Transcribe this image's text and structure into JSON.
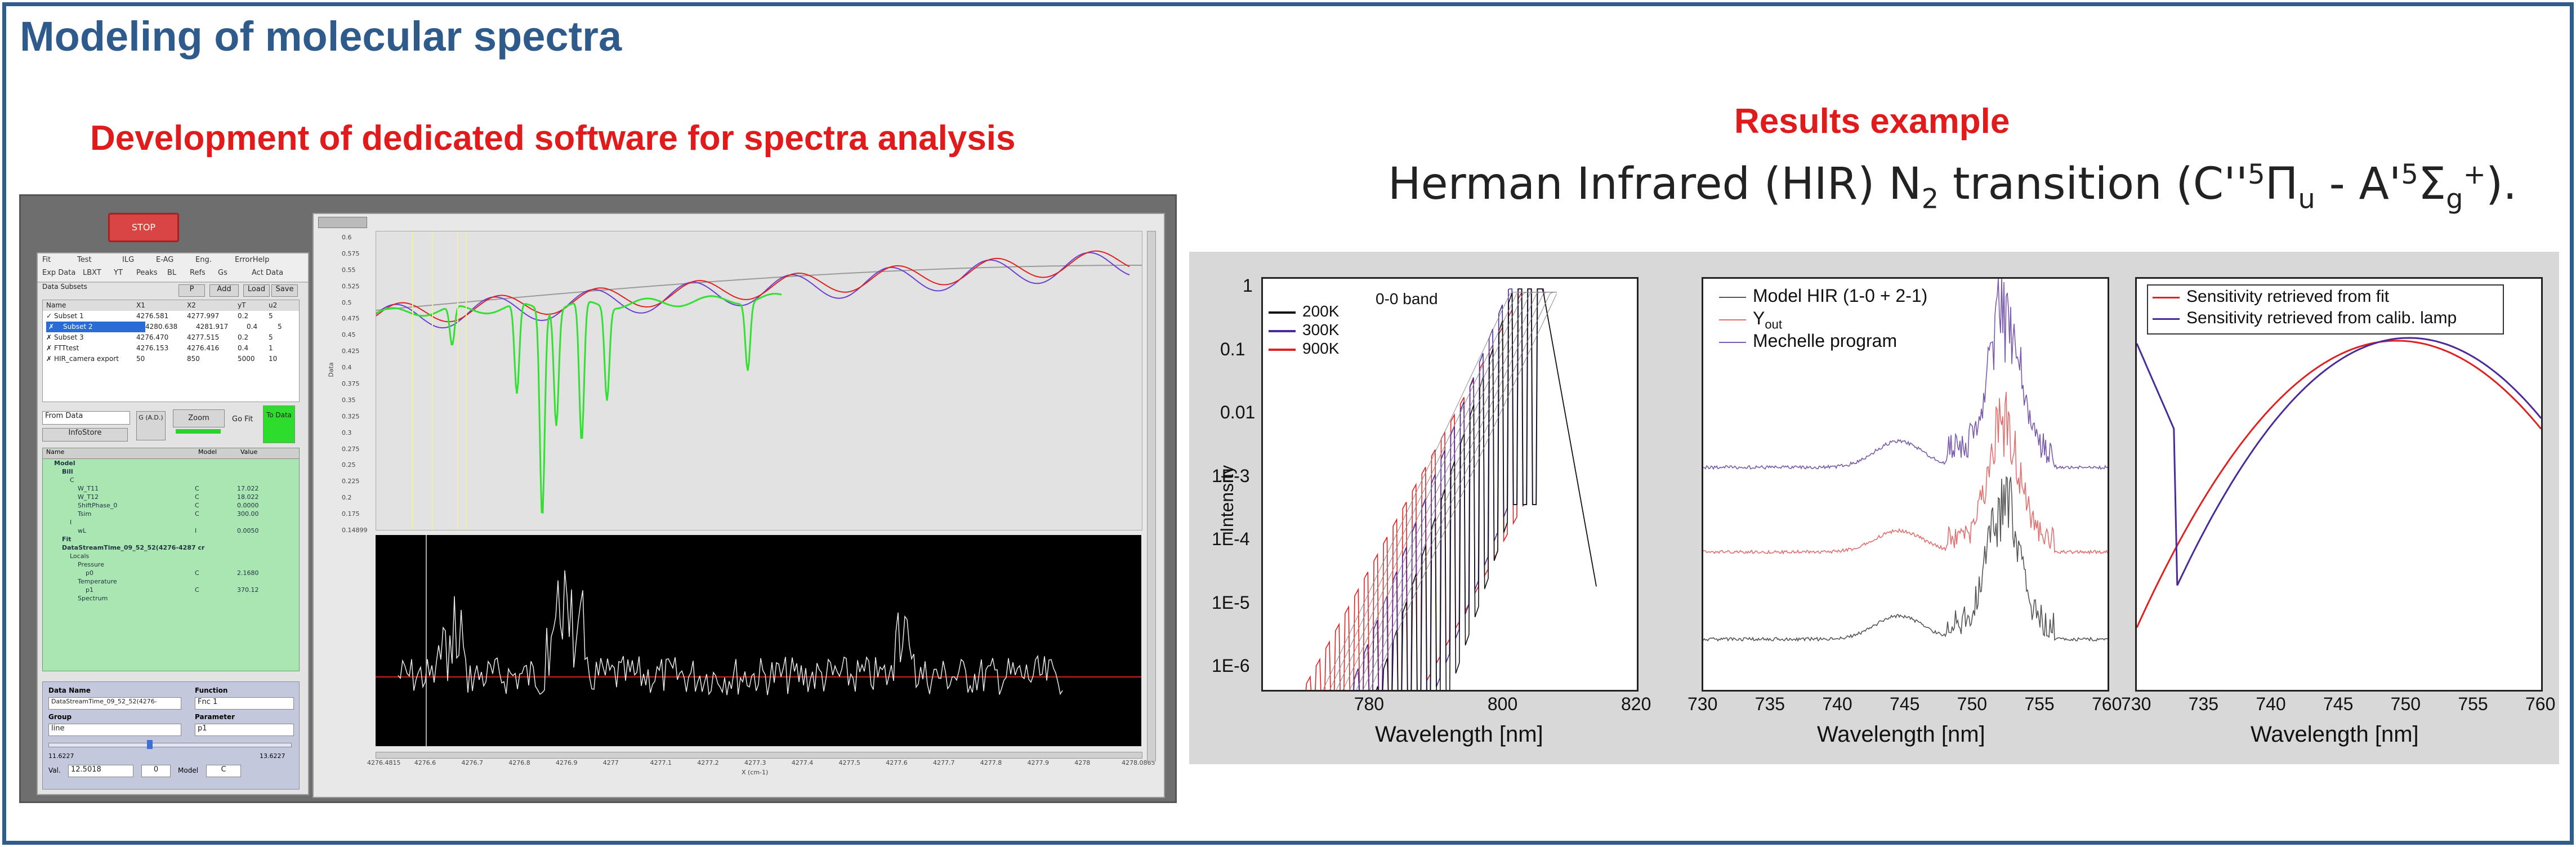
{
  "header": {
    "title": "Modeling of molecular spectra",
    "left_subtitle": "Development of dedicated software for spectra  analysis",
    "right_subtitle": "Results example",
    "transition": {
      "prefix": "Herman Infrared (HIR) N",
      "n_sub": "2",
      "mid": " transition (C''",
      "c_sup": "5",
      "pi": "Π",
      "pi_sub": "u",
      "dash": " - A'",
      "a_sup": "5",
      "sigma": "Σ",
      "sigma_sub": "g",
      "sigma_sup": "+",
      "suffix": ")."
    }
  },
  "software": {
    "stop_label": "STOP",
    "menu_row1": [
      "Fit",
      "Test",
      "ILG",
      "E-AG",
      "Eng.",
      "ErrorHelp"
    ],
    "menu_row2": [
      "Exp Data",
      "LBXT",
      "YT",
      "Peaks",
      "BL",
      "Refs",
      "Gs",
      "Act Data"
    ],
    "subset_buttons": [
      "P",
      "Add",
      "Load",
      "Save"
    ],
    "subsets_title": "Data Subsets",
    "subsets_header": [
      "Name",
      "X1",
      "X2",
      "yT",
      "u2"
    ],
    "subsets": [
      {
        "mark": "✓",
        "name": "Subset 1",
        "x1": "4276.581",
        "x2": "4277.997",
        "yt": "0.2",
        "u": "5"
      },
      {
        "mark": "✗",
        "name": "Subset 2",
        "x1": "4280.638",
        "x2": "4281.917",
        "yt": "0.4",
        "u": "5"
      },
      {
        "mark": "✗",
        "name": "Subset 3",
        "x1": "4276.470",
        "x2": "4277.515",
        "yt": "0.2",
        "u": "5"
      },
      {
        "mark": "✗",
        "name": "FTTtest",
        "x1": "4276.153",
        "x2": "4276.416",
        "yt": "0.4",
        "u": "1"
      },
      {
        "mark": "✗",
        "name": "HIR_camera export",
        "x1": "50",
        "x2": "850",
        "yt": "5000",
        "u": "10"
      }
    ],
    "from_data": "From Data",
    "info_store": "InfoStore",
    "g_ad": "G (A.D.)",
    "zoom": "Zoom",
    "go_fit": "Go Fit",
    "to_data": "To Data",
    "tree_header": [
      "Name",
      "Model",
      "Value"
    ],
    "tree_lines": [
      {
        "indent": 1,
        "name": "Model",
        "model": "",
        "value": ""
      },
      {
        "indent": 2,
        "name": "Bill",
        "model": "",
        "value": ""
      },
      {
        "indent": 3,
        "name": "C",
        "model": "",
        "value": ""
      },
      {
        "indent": 4,
        "name": "W_T11",
        "model": "C",
        "value": "17.022"
      },
      {
        "indent": 4,
        "name": "W_T12",
        "model": "C",
        "value": "18.022"
      },
      {
        "indent": 4,
        "name": "ShiftPhase_0",
        "model": "C",
        "value": "0.0000"
      },
      {
        "indent": 4,
        "name": "Tsim",
        "model": "C",
        "value": "300.00"
      },
      {
        "indent": 3,
        "name": "I",
        "model": "",
        "value": ""
      },
      {
        "indent": 4,
        "name": "wL",
        "model": "I",
        "value": "0.0050"
      },
      {
        "indent": 2,
        "name": "Fit",
        "model": "",
        "value": ""
      },
      {
        "indent": 2,
        "name": "DataStreamTime_09_52_52(4276-4287 cr",
        "model": "",
        "value": ""
      },
      {
        "indent": 3,
        "name": "Locals",
        "model": "",
        "value": ""
      },
      {
        "indent": 4,
        "name": "Pressure",
        "model": "",
        "value": ""
      },
      {
        "indent": 5,
        "name": "p0",
        "model": "C",
        "value": "2.1680"
      },
      {
        "indent": 4,
        "name": "Temperature",
        "model": "",
        "value": ""
      },
      {
        "indent": 5,
        "name": "p1",
        "model": "C",
        "value": "370.12"
      },
      {
        "indent": 4,
        "name": "Spectrum",
        "model": "",
        "value": ""
      }
    ],
    "data_name_label": "Data Name",
    "data_name_value": "DataStreamTime_09_52_52(4276-",
    "function_label": "Function",
    "function_value": "Fnc 1",
    "group_label": "Group",
    "group_value": "line",
    "parameter_label": "Parameter",
    "parameter_value": "p1",
    "range_min": "11.6227",
    "range_max": "13.6227",
    "val_label": "Val.",
    "val_value": "12.5018",
    "val_index": "0",
    "model_label": "Model",
    "model_value": "C",
    "upper_y_ticks": [
      "0.6",
      "0.575",
      "0.55",
      "0.525",
      "0.5",
      "0.475",
      "0.45",
      "0.425",
      "0.4",
      "0.375",
      "0.35",
      "0.325",
      "0.3",
      "0.275",
      "0.25",
      "0.225",
      "0.2",
      "0.175",
      "0.14899"
    ],
    "y_axis_label": "Data",
    "x_ticks": [
      "4276.4815",
      "4276.6",
      "4276.7",
      "4276.8",
      "4276.9",
      "4277",
      "4277.1",
      "4277.2",
      "4277.3",
      "4277.4",
      "4277.5",
      "4277.6",
      "4277.7",
      "4277.8",
      "4277.9",
      "4278",
      "4278.0865"
    ],
    "x_axis_label": "X (cm-1)"
  },
  "colors": {
    "frame": "#2e5e8e",
    "title": "#2f5a8c",
    "accent": "#e11b1b",
    "green_line": "#32e032",
    "red_line": "#e02020",
    "purple_line": "#6a3fd0",
    "black_line": "#000000",
    "gray_line": "#9a9a9a"
  },
  "charts": {
    "left": {
      "type": "line",
      "legend_title": "0-0 band",
      "series": [
        {
          "name": "200K",
          "color": "#111111"
        },
        {
          "name": "300K",
          "color": "#4a2a9a"
        },
        {
          "name": "900K",
          "color": "#e02020"
        }
      ],
      "ylabel": "Intensity",
      "y_ticks": [
        "1",
        "0.1",
        "0.01",
        "1E-3",
        "1E-4",
        "1E-5",
        "1E-6"
      ],
      "xlabel": "Wavelength [nm]",
      "x_ticks": [
        "780",
        "800",
        "820"
      ],
      "xlim": [
        764,
        820
      ],
      "ylim_log10": [
        -6,
        0.1
      ]
    },
    "middle": {
      "type": "line",
      "series": [
        {
          "name": "Model HIR (1-0 + 2-1)",
          "color": "#555555"
        },
        {
          "name_main": "Y",
          "name_sub": "out",
          "color": "#e07070"
        },
        {
          "name": "Mechelle program",
          "color": "#7a5aaa"
        }
      ],
      "xlabel": "Wavelength [nm]",
      "x_ticks": [
        "730",
        "735",
        "740",
        "745",
        "750",
        "755",
        "760"
      ],
      "xlim": [
        730,
        760
      ]
    },
    "right": {
      "type": "line",
      "series": [
        {
          "name": "Sensitivity retrieved from fit",
          "color": "#e02020"
        },
        {
          "name": "Sensitivity retrieved from calib. lamp",
          "color": "#4a2a9a"
        }
      ],
      "xlabel": "Wavelength [nm]",
      "x_ticks": [
        "730",
        "735",
        "740",
        "745",
        "750",
        "755",
        "760"
      ],
      "xlim": [
        730,
        760
      ]
    }
  }
}
